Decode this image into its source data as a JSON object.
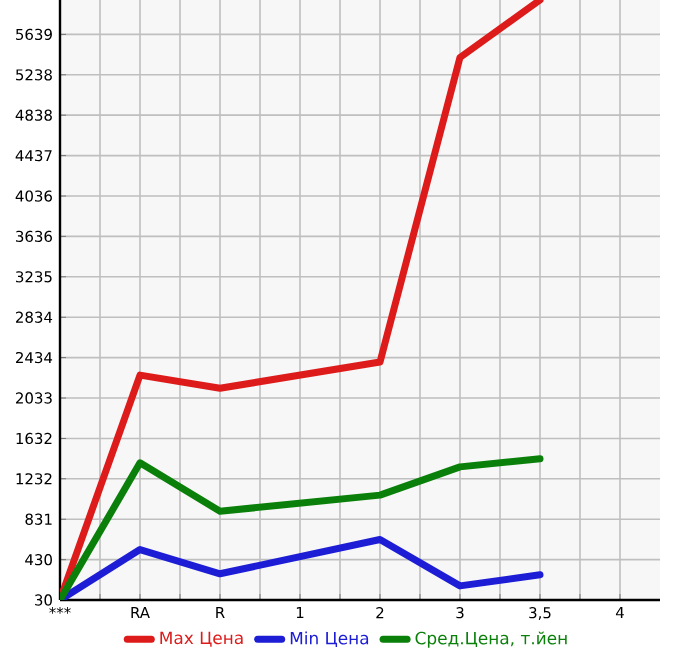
{
  "chart_data": {
    "type": "line",
    "categories": [
      "***",
      "RA",
      "R",
      "1",
      "2",
      "3",
      "3,5",
      "4"
    ],
    "series": [
      {
        "name": "Max Цена",
        "color": "#dd1b1b",
        "values": [
          30,
          2260,
          2130,
          null,
          2390,
          5410,
          5980,
          null
        ]
      },
      {
        "name": "Min Цена",
        "color": "#1d1dd6",
        "values": [
          30,
          530,
          290,
          null,
          630,
          170,
          280,
          null
        ]
      },
      {
        "name": "Сред.Цена, т.йен",
        "color": "#0a800a",
        "values": [
          30,
          1390,
          910,
          null,
          1070,
          1350,
          1430,
          null
        ]
      }
    ],
    "ylim": [
      30,
      5980
    ],
    "yticks": [
      30,
      430,
      831,
      1232,
      1632,
      2033,
      2434,
      2834,
      3235,
      3636,
      4036,
      4437,
      4838,
      5238,
      5639
    ],
    "grid": true,
    "legend": "bottom"
  }
}
